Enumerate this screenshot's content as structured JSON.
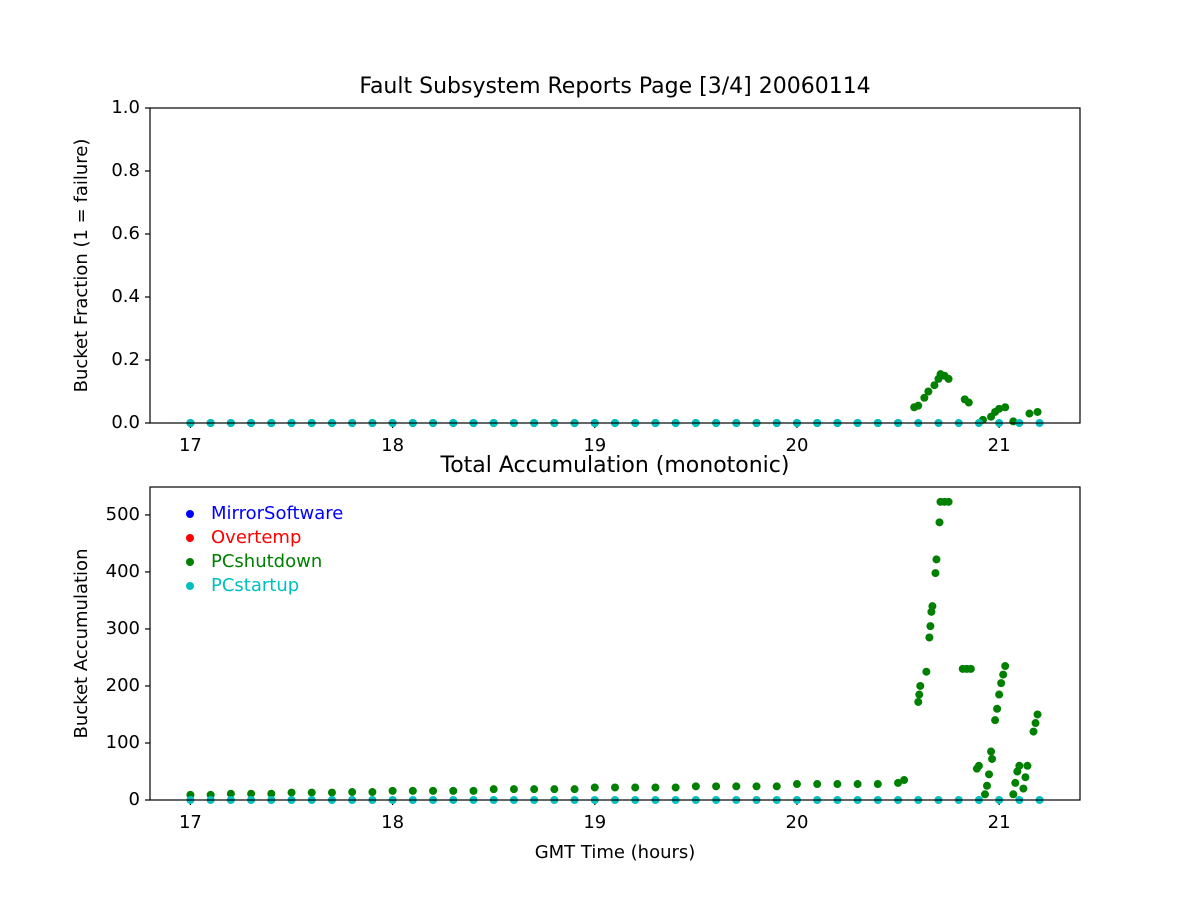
{
  "chart_data": [
    {
      "type": "scatter",
      "title": "Fault Subsystem Reports Page [3/4] 20060114",
      "y_label": "Bucket Fraction (1 = failure)",
      "xlim": [
        16.8,
        21.4
      ],
      "xticks": [
        17,
        18,
        19,
        20,
        21
      ],
      "ylim": [
        0,
        1
      ],
      "yticks": [
        {
          "value": 0,
          "label": "0.0"
        },
        {
          "value": 0.2,
          "label": "0.2"
        },
        {
          "value": 0.4,
          "label": "0.4"
        },
        {
          "value": 0.6,
          "label": "0.6"
        },
        {
          "value": 0.8,
          "label": "0.8"
        },
        {
          "value": 1,
          "label": "1.0"
        }
      ],
      "legend": false,
      "series": [
        {
          "name": "PCshutdown",
          "color": "#008000",
          "x": [
            17.0,
            17.1,
            17.2,
            17.3,
            17.4,
            17.5,
            17.6,
            17.7,
            17.8,
            17.9,
            18.0,
            18.1,
            18.2,
            18.3,
            18.4,
            18.5,
            18.6,
            18.7,
            18.8,
            18.9,
            19.0,
            19.1,
            19.2,
            19.3,
            19.4,
            19.5,
            19.6,
            19.7,
            19.8,
            19.9,
            20.0,
            20.1,
            20.2,
            20.3,
            20.4,
            20.5,
            20.58,
            20.6,
            20.63,
            20.65,
            20.68,
            20.7,
            20.71,
            20.73,
            20.75,
            20.83,
            20.85,
            20.92,
            20.96,
            20.98,
            21.0,
            21.03,
            21.07,
            21.15,
            21.19
          ],
          "values": [
            0,
            0,
            0,
            0,
            0,
            0,
            0,
            0,
            0,
            0,
            0,
            0,
            0,
            0,
            0,
            0,
            0,
            0,
            0,
            0,
            0,
            0,
            0,
            0,
            0,
            0,
            0,
            0,
            0,
            0,
            0,
            0,
            0,
            0,
            0,
            0,
            0.05,
            0.055,
            0.08,
            0.1,
            0.12,
            0.14,
            0.155,
            0.15,
            0.14,
            0.075,
            0.065,
            0.01,
            0.02,
            0.035,
            0.045,
            0.05,
            0.005,
            0.03,
            0.035
          ]
        },
        {
          "name": "PCstartup",
          "color": "#00bfbf",
          "x": [
            17.0,
            17.1,
            17.2,
            17.3,
            17.4,
            17.5,
            17.6,
            17.7,
            17.8,
            17.9,
            18.0,
            18.1,
            18.2,
            18.3,
            18.4,
            18.5,
            18.6,
            18.7,
            18.8,
            18.9,
            19.0,
            19.1,
            19.2,
            19.3,
            19.4,
            19.5,
            19.6,
            19.7,
            19.8,
            19.9,
            20.0,
            20.1,
            20.2,
            20.3,
            20.4,
            20.5,
            20.6,
            20.7,
            20.8,
            20.9,
            21.0,
            21.1,
            21.2
          ],
          "values": [
            0,
            0,
            0,
            0,
            0,
            0,
            0,
            0,
            0,
            0,
            0,
            0,
            0,
            0,
            0,
            0,
            0,
            0,
            0,
            0,
            0,
            0,
            0,
            0,
            0,
            0,
            0,
            0,
            0,
            0,
            0,
            0,
            0,
            0,
            0,
            0,
            0,
            0,
            0,
            0,
            0,
            0,
            0
          ]
        }
      ]
    },
    {
      "type": "scatter",
      "title": "Total Accumulation (monotonic)",
      "x_label": "GMT Time (hours)",
      "y_label": "Bucket Accumulation",
      "xlim": [
        16.8,
        21.4
      ],
      "xticks": [
        17,
        18,
        19,
        20,
        21
      ],
      "ylim": [
        0,
        549
      ],
      "yticks": [
        0,
        100,
        200,
        300,
        400,
        500
      ],
      "legend": "upper left",
      "series": [
        {
          "name": "MirrorSoftware",
          "color": "#0000ff",
          "x": [],
          "values": []
        },
        {
          "name": "Overtemp",
          "color": "#ff0000",
          "x": [],
          "values": []
        },
        {
          "name": "PCshutdown",
          "color": "#008000",
          "x": [
            17.0,
            17.1,
            17.2,
            17.3,
            17.4,
            17.5,
            17.6,
            17.7,
            17.8,
            17.9,
            18.0,
            18.1,
            18.2,
            18.3,
            18.4,
            18.5,
            18.6,
            18.7,
            18.8,
            18.9,
            19.0,
            19.1,
            19.2,
            19.3,
            19.4,
            19.5,
            19.6,
            19.7,
            19.8,
            19.9,
            20.0,
            20.1,
            20.2,
            20.3,
            20.4,
            20.5,
            20.53,
            20.6,
            20.605,
            20.61,
            20.64,
            20.655,
            20.66,
            20.665,
            20.67,
            20.685,
            20.69,
            20.705,
            20.71,
            20.73,
            20.75,
            20.82,
            20.84,
            20.86,
            20.89,
            20.9,
            20.93,
            20.94,
            20.95,
            20.96,
            20.965,
            20.98,
            20.99,
            21.0,
            21.01,
            21.02,
            21.03,
            21.07,
            21.08,
            21.09,
            21.1,
            21.12,
            21.13,
            21.14,
            21.17,
            21.18,
            21.19
          ],
          "values": [
            9,
            9,
            11,
            11,
            11,
            13,
            13,
            13,
            14,
            14,
            16,
            16,
            16,
            16,
            16,
            19,
            19,
            19,
            19,
            19,
            22,
            22,
            22,
            22,
            22,
            24,
            24,
            24,
            24,
            24,
            28,
            28,
            28,
            28,
            28,
            30,
            35,
            172,
            185,
            200,
            225,
            285,
            305,
            330,
            340,
            398,
            422,
            487,
            523,
            523,
            523,
            230,
            230,
            230,
            55,
            60,
            10,
            25,
            45,
            85,
            72,
            140,
            160,
            185,
            205,
            220,
            235,
            10,
            30,
            50,
            60,
            20,
            40,
            60,
            120,
            135,
            150
          ]
        },
        {
          "name": "PCstartup",
          "color": "#00bfbf",
          "x": [
            17.0,
            17.1,
            17.2,
            17.3,
            17.4,
            17.5,
            17.6,
            17.7,
            17.8,
            17.9,
            18.0,
            18.1,
            18.2,
            18.3,
            18.4,
            18.5,
            18.6,
            18.7,
            18.8,
            18.9,
            19.0,
            19.1,
            19.2,
            19.3,
            19.4,
            19.5,
            19.6,
            19.7,
            19.8,
            19.9,
            20.0,
            20.1,
            20.2,
            20.3,
            20.4,
            20.5,
            20.6,
            20.7,
            20.8,
            20.9,
            21.0,
            21.1,
            21.2
          ],
          "values": [
            0,
            0,
            0,
            0,
            0,
            0,
            0,
            0,
            0,
            0,
            0,
            0,
            0,
            0,
            0,
            0,
            0,
            0,
            0,
            0,
            0,
            0,
            0,
            0,
            0,
            0,
            0,
            0,
            0,
            0,
            0,
            0,
            0,
            0,
            0,
            0,
            0,
            0,
            0,
            0,
            0,
            0,
            0
          ]
        }
      ]
    }
  ]
}
